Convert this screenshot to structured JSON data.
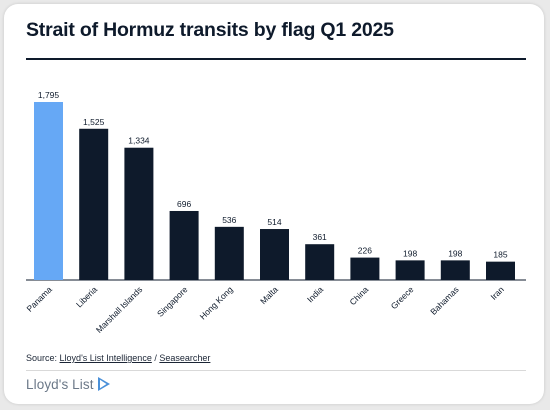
{
  "title": "Strait of Hormuz transits by flag Q1 2025",
  "source": {
    "prefix": "Source:",
    "link1": "Lloyd's List Intelligence",
    "separator": "/",
    "link2": "Seasearcher"
  },
  "brand": {
    "name": "Lloyd's List",
    "icon": "play-chevron-icon"
  },
  "colors": {
    "highlight": "#66a8f5",
    "bar": "#0e1a2b",
    "text": "#0e1a2b"
  },
  "chart_data": {
    "type": "bar",
    "categories": [
      "Panama",
      "Liberia",
      "Marshall Islands",
      "Singapore",
      "Hong Kong",
      "Malta",
      "India",
      "China",
      "Greece",
      "Bahamas",
      "Iran"
    ],
    "values": [
      1795,
      1525,
      1334,
      696,
      536,
      514,
      361,
      226,
      198,
      198,
      185
    ],
    "labels": [
      "1,795",
      "1,525",
      "1,334",
      "696",
      "536",
      "514",
      "361",
      "226",
      "198",
      "198",
      "185"
    ],
    "highlighted": [
      "Panama"
    ],
    "ylim": [
      0,
      1795
    ],
    "grid": false,
    "legend": "none"
  }
}
